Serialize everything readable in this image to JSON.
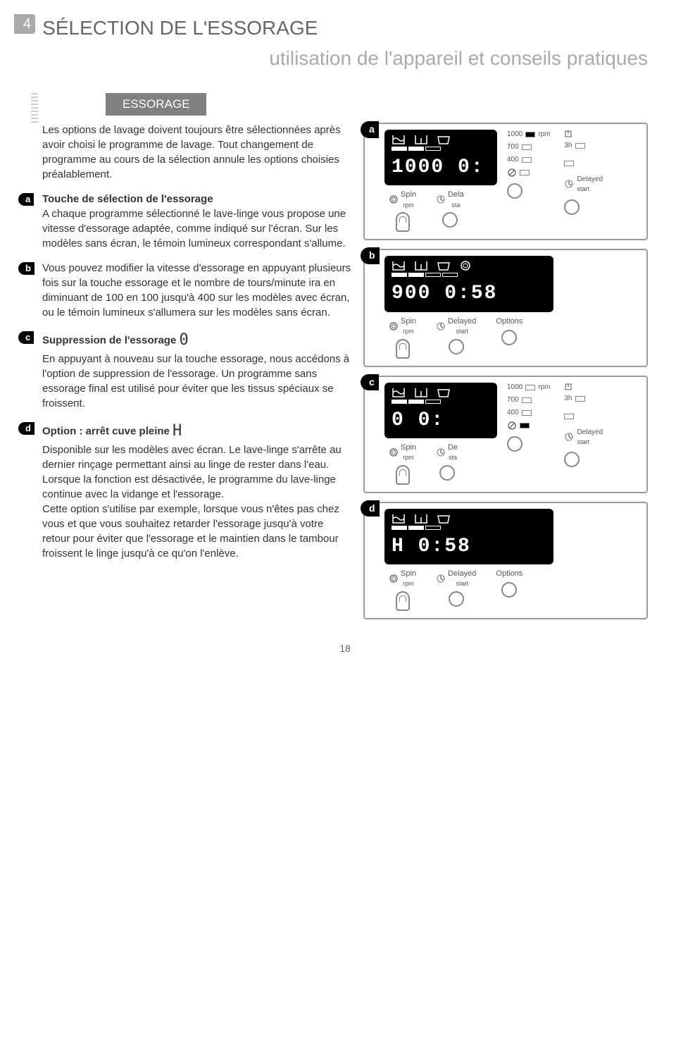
{
  "header": {
    "section_number": "4",
    "title_line1": "SÉLECTION DE L'ESSORAGE",
    "title_line2": "utilisation de l'appareil et conseils pratiques"
  },
  "essorage_label": "ESSORAGE",
  "intro": "Les options de lavage doivent toujours être sélectionnées après avoir choisi le programme de lavage. Tout changement de programme au cours de la sélection annule les options choisies préalablement.",
  "items": [
    {
      "bullet": "a",
      "title": "Touche de sélection de l'essorage",
      "text": "A chaque programme sélectionné le lave-linge vous propose une vitesse d'essorage adaptée, comme indiqué sur l'écran. Sur les modèles sans écran, le témoin lumineux correspondant s'allume."
    },
    {
      "bullet": "b",
      "title": "",
      "text": "Vous pouvez modifier la vitesse d'essorage en appuyant plusieurs fois sur la touche essorage et le nombre de tours/minute ira en diminuant de 100 en 100 jusqu'à 400 sur les modèles avec écran, ou le témoin lumineux s'allumera sur les modèles sans écran."
    },
    {
      "bullet": "c",
      "title": "Suppression de l'essorage",
      "title_icon": "0",
      "text": "En appuyant à nouveau sur la touche essorage, nous accédons à l'option de suppression de l'essorage. Un programme sans essorage final est utilisé pour éviter que les tissus spéciaux se froissent."
    },
    {
      "bullet": "d",
      "title": "Option : arrêt cuve pleine",
      "title_icon": "H",
      "text": "Disponible sur les modèles avec écran. Le lave-linge s'arrête au dernier rinçage permettant ainsi au linge de rester dans l'eau.\nLorsque la fonction est désactivée, le programme du lave-linge continue avec la vidange et l'essorage.\nCette option s'utilise par exemple, lorsque vous n'êtes pas chez vous et que vous souhaitez retarder l'essorage jusqu'à votre retour pour éviter que l'essorage et le maintien dans le tambour froissent le linge jusqu'à ce qu'on l'enlève."
    }
  ],
  "panels": {
    "a": {
      "tag": "a",
      "lcd_main": "1000 0:",
      "cutoff": true,
      "buttons": [
        {
          "label": "Spin",
          "sub": "rpm",
          "thumb": true
        },
        {
          "label": "Dela",
          "sub": "sta",
          "thumb": false,
          "cutoff": true
        }
      ],
      "rpm_panel": {
        "unit": "rpm",
        "rows": [
          {
            "v": "1000",
            "on": true
          },
          {
            "v": "700",
            "on": false
          },
          {
            "v": "400",
            "on": false
          }
        ],
        "nospin": true,
        "delay": "3h",
        "delayed_label": "Delayed",
        "start_label": "start"
      }
    },
    "b": {
      "tag": "b",
      "lcd_main": "900 0:58",
      "side_icons": true,
      "spiral": true,
      "buttons": [
        {
          "label": "Spin",
          "sub": "rpm",
          "thumb": true
        },
        {
          "label": "Delayed",
          "sub": "start",
          "thumb": false
        },
        {
          "label": "Options",
          "sub": "",
          "thumb": false
        }
      ]
    },
    "c": {
      "tag": "c",
      "lcd_main": "0 0:",
      "cutoff": true,
      "buttons": [
        {
          "label": "Spin",
          "sub": "rpm",
          "thumb": true
        },
        {
          "label": "De",
          "sub": "sta",
          "thumb": false,
          "cutoff": true
        }
      ],
      "rpm_panel": {
        "unit": "rpm",
        "rows": [
          {
            "v": "1000",
            "on": false
          },
          {
            "v": "700",
            "on": false
          },
          {
            "v": "400",
            "on": false
          }
        ],
        "nospin": true,
        "nospin_on": true,
        "delay": "3h",
        "delayed_label": "Delayed",
        "start_label": "start"
      }
    },
    "d": {
      "tag": "d",
      "lcd_main": "H  0:58",
      "side_icons": true,
      "buttons": [
        {
          "label": "Spin",
          "sub": "rpm",
          "thumb": true
        },
        {
          "label": "Delayed",
          "sub": "start",
          "thumb": false
        },
        {
          "label": "Options",
          "sub": "",
          "thumb": false
        }
      ]
    }
  },
  "page_number": "18",
  "colors": {
    "gray_marker": "#aaaaaa",
    "gray_title": "#666666",
    "gray_subtitle": "#aaaaaa",
    "gray_label_bg": "#808080",
    "black": "#000000",
    "border": "#9a9a9a",
    "text": "#333333"
  }
}
